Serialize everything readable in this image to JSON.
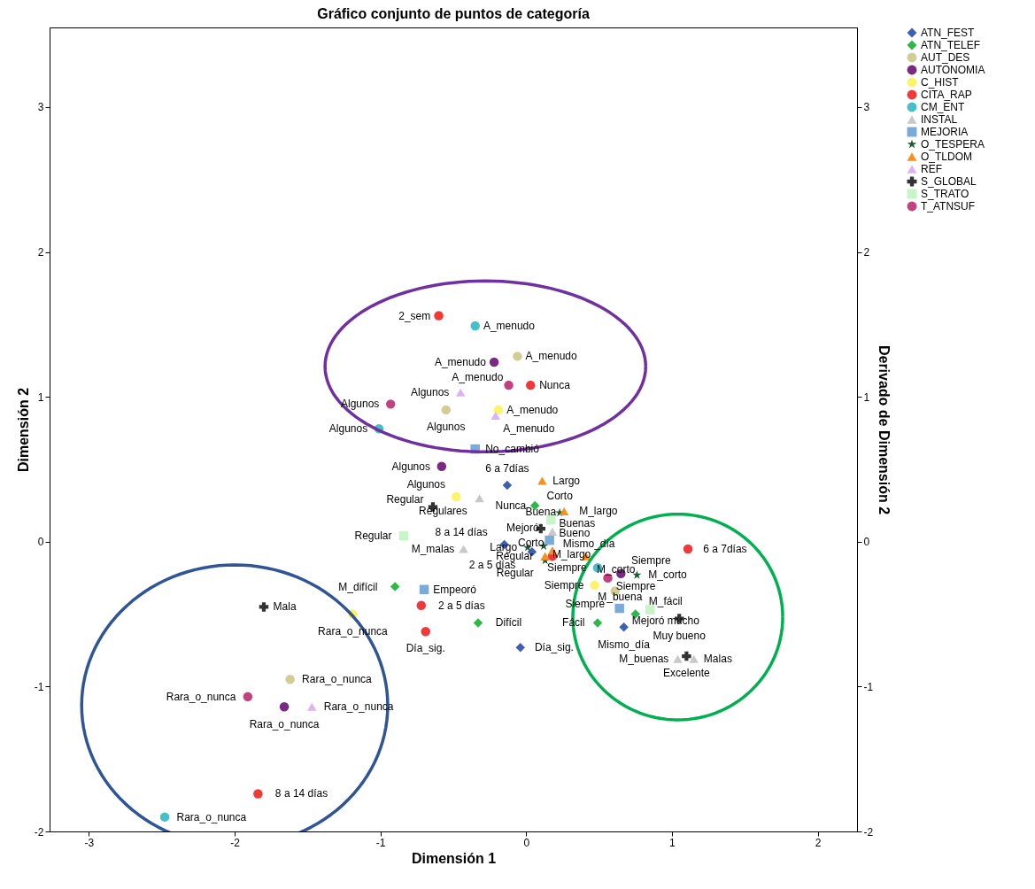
{
  "chart_data": {
    "type": "scatter",
    "title": "Gráfico conjunto de puntos de categoría",
    "xlabel": "Dimensión 1",
    "ylabel": "Dimensión 2",
    "y2label": "Derivado de Dimensión 2",
    "xlim": [
      -3.27,
      2.27
    ],
    "ylim": [
      -2,
      3.55
    ],
    "y2lim": [
      -2,
      3.55
    ],
    "xticks": [
      -3,
      -2,
      -1,
      0,
      1,
      2
    ],
    "yticks": [
      -2,
      -1,
      0,
      1,
      2,
      3
    ],
    "y2ticks": [
      -2,
      -1,
      0,
      1,
      2,
      3
    ],
    "grid": false,
    "legend": "right",
    "series": [
      {
        "name": "ATN_FEST",
        "color": "#3f5fb4",
        "marker": "diamond",
        "x": [
          -0.13,
          -0.15,
          0.04,
          -0.04,
          0.67
        ],
        "values": [
          0.39,
          -0.02,
          -0.07,
          -0.73,
          -0.59
        ],
        "value_labels": [
          "6 a 7días",
          "8 a 14 días",
          "2 a 5 días",
          "Día_sig.",
          "Mismo_día"
        ]
      },
      {
        "name": "ATN_TELEF",
        "color": "#2db84a",
        "marker": "diamond",
        "x": [
          0.06,
          -0.9,
          -0.33,
          0.49,
          0.75
        ],
        "values": [
          0.25,
          -0.31,
          -0.56,
          -0.56,
          -0.5
        ],
        "value_labels": [
          "Nunca",
          "M_difícil",
          "Difícil",
          "Fácil",
          "M_fácil"
        ]
      },
      {
        "name": "AUT_DES",
        "color": "#d2cc96",
        "marker": "circle",
        "x": [
          -0.06,
          -0.55,
          0.61,
          -1.62
        ],
        "values": [
          1.28,
          0.91,
          -0.34,
          -0.95
        ],
        "value_labels": [
          "A_menudo",
          "Algunos",
          "Siempre",
          "Rara_o_nunca"
        ]
      },
      {
        "name": "AUTONOMIA",
        "color": "#7b2a82",
        "marker": "circle",
        "x": [
          -0.22,
          -0.58,
          0.65,
          -1.66
        ],
        "values": [
          1.24,
          0.52,
          -0.22,
          -1.14
        ],
        "value_labels": [
          "A_menudo",
          "Algunos",
          "Siempre",
          "Rara_o_nunca"
        ]
      },
      {
        "name": "C_HIST",
        "color": "#fbf46a",
        "marker": "circle",
        "x": [
          -0.19,
          -0.48,
          0.47,
          -1.19
        ],
        "values": [
          0.91,
          0.31,
          -0.3,
          -0.5
        ],
        "value_labels": [
          "A_menudo",
          "Algunos",
          "Siempre",
          "Rara_o_nunca"
        ]
      },
      {
        "name": "CITA_RAP",
        "color": "#f03a3a",
        "marker": "circle",
        "x": [
          -0.6,
          0.03,
          1.11,
          0.18,
          -0.72,
          -0.69,
          -1.84
        ],
        "values": [
          1.56,
          1.08,
          -0.05,
          -0.1,
          -0.44,
          -0.62,
          -1.74
        ],
        "value_labels": [
          "2_sem",
          "Nunca",
          "6 a 7días",
          "Mismo_día",
          "2 a 5 días",
          "Día_sig.",
          "8 a 14 días"
        ]
      },
      {
        "name": "CM_ENT",
        "color": "#45c0c8",
        "marker": "circle",
        "x": [
          -0.35,
          -1.01,
          0.49,
          -2.48
        ],
        "values": [
          1.49,
          0.78,
          -0.18,
          -1.9
        ],
        "value_labels": [
          "A_menudo",
          "Algunos",
          "Siempre",
          "Rara_o_nunca"
        ]
      },
      {
        "name": "INSTAL",
        "color": "#c8c8c8",
        "marker": "triangle",
        "x": [
          -0.32,
          0.18,
          -0.43,
          1.04,
          1.15
        ],
        "values": [
          0.3,
          0.07,
          -0.05,
          -0.81,
          -0.81
        ],
        "value_labels": [
          "Regulares",
          "Buenas",
          "M_malas",
          "M_buenas",
          "Malas"
        ]
      },
      {
        "name": "MEJORIA",
        "color": "#7aaad8",
        "marker": "square",
        "x": [
          -0.35,
          0.16,
          0.64,
          -0.7
        ],
        "values": [
          0.64,
          0.01,
          -0.46,
          -0.33
        ],
        "value_labels": [
          "No_cambió",
          "Mejoró",
          "Mejoró mucho",
          "Empeoró"
        ]
      },
      {
        "name": "O_TESPERA",
        "color": "#1e5a32",
        "marker": "star",
        "x": [
          0.23,
          0.01,
          0.12,
          0.13,
          0.76
        ],
        "values": [
          0.2,
          -0.04,
          -0.03,
          -0.13,
          -0.23
        ],
        "value_labels": [
          "Corto",
          "Largo",
          "M_largo",
          "Regular",
          "M_corto"
        ]
      },
      {
        "name": "O_TLDOM",
        "color": "#f7901e",
        "marker": "triangle",
        "x": [
          0.11,
          0.26,
          0.18,
          0.13,
          0.41
        ],
        "values": [
          0.42,
          0.21,
          -0.06,
          -0.1,
          -0.1
        ],
        "value_labels": [
          "Largo",
          "M_largo",
          "Corto",
          "Regular",
          "M_corto"
        ]
      },
      {
        "name": "REF",
        "color": "#dcb4f0",
        "marker": "triangle",
        "x": [
          -0.45,
          -0.21,
          -1.47
        ],
        "values": [
          1.03,
          0.87,
          -1.14
        ],
        "value_labels": [
          "Algunos",
          "A_menudo",
          "Rara_o_nunca"
        ]
      },
      {
        "name": "S_GLOBAL",
        "color": "#333333",
        "marker": "cross",
        "x": [
          -0.64,
          0.1,
          -1.8,
          1.05,
          1.1
        ],
        "values": [
          0.24,
          0.09,
          -0.45,
          -0.53,
          -0.79
        ],
        "value_labels": [
          "Regular",
          "Buena",
          "Mala",
          "Muy bueno",
          "Excelente"
        ]
      },
      {
        "name": "S_TRATO",
        "color": "#c8f5c8",
        "marker": "square",
        "x": [
          -0.84,
          0.17,
          0.85
        ],
        "values": [
          0.04,
          0.15,
          -0.47
        ],
        "value_labels": [
          "Regular",
          "Bueno",
          "M_buena"
        ]
      },
      {
        "name": "T_ATNSUF",
        "color": "#c0427e",
        "marker": "circle",
        "x": [
          -0.12,
          -0.93,
          0.56,
          -1.91
        ],
        "values": [
          1.08,
          0.95,
          -0.25,
          -1.07
        ],
        "value_labels": [
          "A_menudo",
          "Algunos",
          "Siempre",
          "Rara_o_nunca"
        ]
      }
    ]
  }
}
